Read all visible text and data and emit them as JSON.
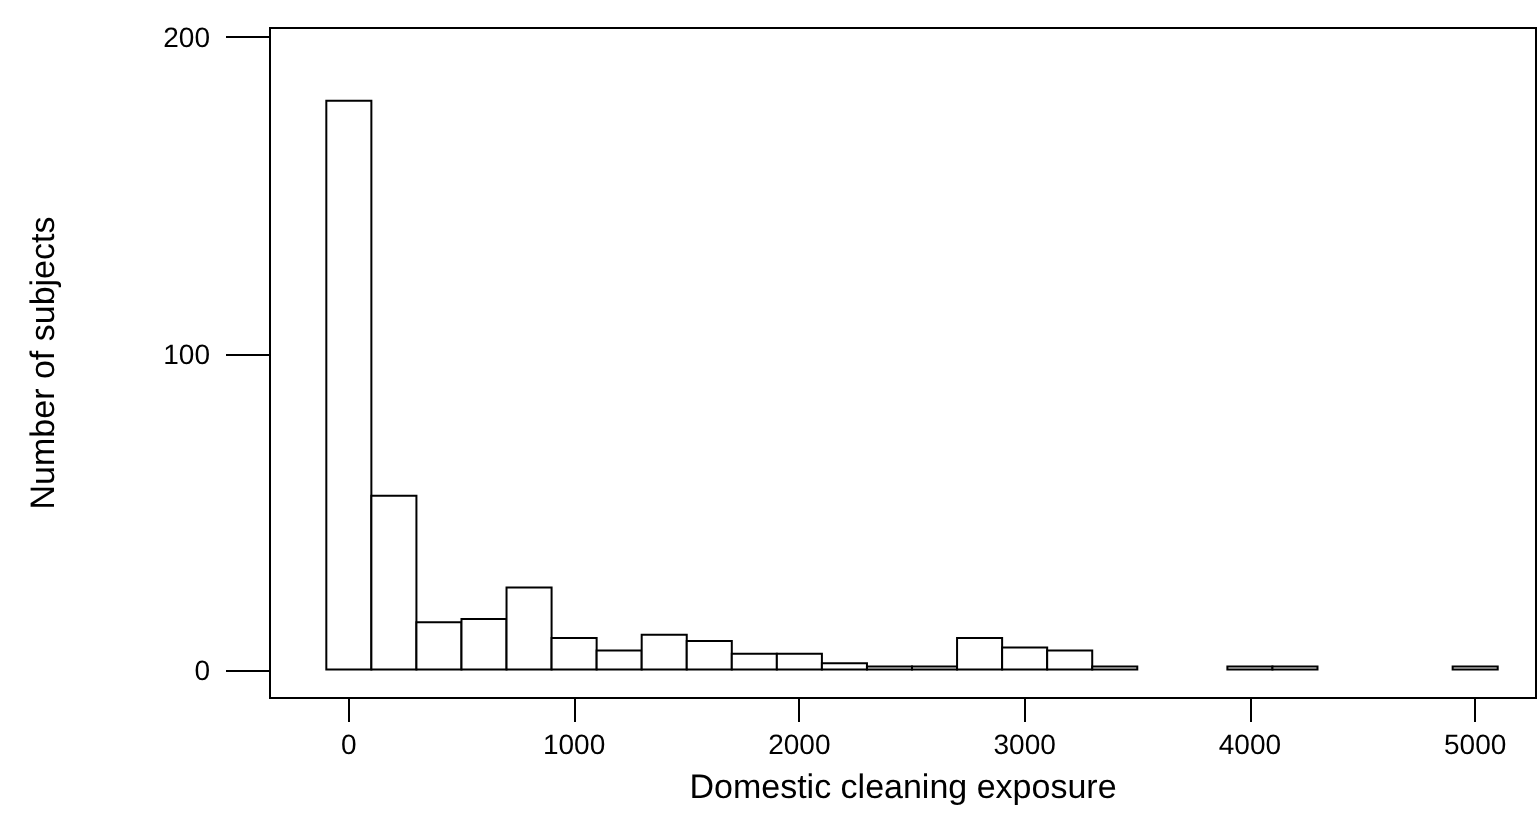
{
  "chart_data": {
    "type": "histogram",
    "xlabel": "Domestic cleaning exposure",
    "ylabel": "Number of subjects",
    "bins": [
      -100,
      100,
      300,
      500,
      700,
      900,
      1100,
      1300,
      1500,
      1700,
      1900,
      2100,
      2300,
      2500,
      2700,
      2900,
      3100,
      3300,
      3500,
      3700,
      3900,
      4100,
      4300,
      4500,
      4700,
      4900,
      5100
    ],
    "values": [
      180,
      55,
      15,
      16,
      26,
      10,
      6,
      11,
      9,
      5,
      5,
      2,
      1,
      1,
      10,
      7,
      6,
      1,
      0,
      0,
      1,
      1,
      0,
      0,
      0,
      1
    ],
    "color": "#ffffff",
    "xlim": [
      -350,
      5270
    ],
    "ylim": [
      -9,
      203
    ],
    "xticks": [
      0,
      1000,
      2000,
      3000,
      4000,
      5000
    ],
    "yticks": [
      0,
      100,
      200
    ],
    "grid": false
  }
}
